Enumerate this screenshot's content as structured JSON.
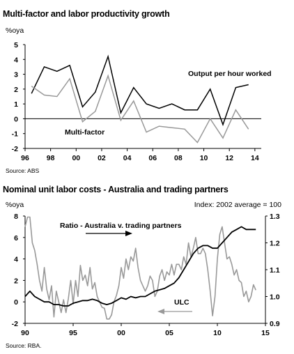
{
  "chart_data": [
    {
      "type": "line",
      "title": "Multi-factor and labor productivity growth",
      "ylabel": "%oya",
      "source": "Source: ABS",
      "xlim": [
        1996,
        2014.5
      ],
      "ylim": [
        -2,
        5
      ],
      "xticks": [
        96,
        98,
        0,
        2,
        4,
        6,
        8,
        10,
        12,
        14
      ],
      "xtick_labels": [
        "96",
        "98",
        "00",
        "02",
        "04",
        "06",
        "08",
        "10",
        "12",
        "14"
      ],
      "yticks": [
        -2,
        -1,
        0,
        1,
        2,
        3,
        4,
        5
      ],
      "ytick_labels": [
        "-2",
        "-1",
        "0",
        "1",
        "2",
        "3",
        "4",
        "5"
      ],
      "series": [
        {
          "name": "Output per hour worked",
          "color": "#000000",
          "x": [
            1996.5,
            1997.5,
            1998.5,
            1999.5,
            2000.5,
            2001.5,
            2002.5,
            2003.5,
            2004.5,
            2005.5,
            2006.5,
            2007.5,
            2008.5,
            2009.5,
            2010.5,
            2011.5,
            2012.5,
            2013.5
          ],
          "values": [
            1.7,
            3.5,
            3.2,
            3.6,
            0.8,
            1.8,
            4.2,
            0.4,
            2.1,
            1.0,
            0.7,
            1.0,
            0.6,
            0.6,
            2.0,
            -0.4,
            2.1,
            2.3
          ]
        },
        {
          "name": "Multi-factor",
          "color": "#999999",
          "x": [
            1996.5,
            1997.5,
            1998.5,
            1999.5,
            2000.5,
            2001.5,
            2002.5,
            2003.5,
            2004.5,
            2005.5,
            2006.5,
            2007.5,
            2008.5,
            2009.5,
            2010.5,
            2011.5,
            2012.5,
            2013.5
          ],
          "values": [
            2.2,
            1.6,
            1.5,
            2.7,
            -0.2,
            0.5,
            2.9,
            -0.1,
            1.2,
            -0.9,
            -0.5,
            -0.6,
            -0.7,
            -1.6,
            0.0,
            -1.3,
            0.6,
            -0.7
          ]
        }
      ]
    },
    {
      "type": "line",
      "title": "Nominal unit labor costs - Australia and trading partners",
      "ylabel": "%oya",
      "index_note": "Index: 2002 average = 100",
      "source": "Source: RBA.",
      "xlim": [
        1990,
        2015
      ],
      "ylim": [
        -2,
        8
      ],
      "y2lim": [
        0.9,
        1.3
      ],
      "xticks": [
        90,
        95,
        0,
        5,
        10,
        15
      ],
      "xtick_labels": [
        "90",
        "95",
        "00",
        "05",
        "10",
        "15"
      ],
      "yticks": [
        -2,
        0,
        2,
        4,
        6,
        8
      ],
      "ytick_labels": [
        "-2",
        "0",
        "2",
        "4",
        "6",
        "8"
      ],
      "y2ticks": [
        0.9,
        1.0,
        1.1,
        1.2,
        1.3
      ],
      "y2tick_labels": [
        "0.9",
        "1.0",
        "1.1",
        "1.2",
        "1.3"
      ],
      "series": [
        {
          "name": "ULC",
          "axis": "left",
          "color": "#999999",
          "x": [
            1990.0,
            1990.25,
            1990.5,
            1990.75,
            1991.0,
            1991.25,
            1991.5,
            1991.75,
            1992.0,
            1992.25,
            1992.5,
            1992.75,
            1993.0,
            1993.25,
            1993.5,
            1993.75,
            1994.0,
            1994.25,
            1994.5,
            1994.75,
            1995.0,
            1995.25,
            1995.5,
            1995.75,
            1996.0,
            1996.25,
            1996.5,
            1996.75,
            1997.0,
            1997.25,
            1997.5,
            1997.75,
            1998.0,
            1998.25,
            1998.5,
            1998.75,
            1999.0,
            1999.25,
            1999.5,
            1999.75,
            2000.0,
            2000.25,
            2000.5,
            2000.75,
            2001.0,
            2001.25,
            2001.5,
            2001.75,
            2002.0,
            2002.25,
            2002.5,
            2002.75,
            2003.0,
            2003.25,
            2003.5,
            2003.75,
            2004.0,
            2004.25,
            2004.5,
            2004.75,
            2005.0,
            2005.25,
            2005.5,
            2005.75,
            2006.0,
            2006.25,
            2006.5,
            2006.75,
            2007.0,
            2007.25,
            2007.5,
            2007.75,
            2008.0,
            2008.25,
            2008.5,
            2008.75,
            2009.0,
            2009.25,
            2009.5,
            2009.75,
            2010.0,
            2010.25,
            2010.5,
            2010.75,
            2011.0,
            2011.25,
            2011.5,
            2011.75,
            2012.0,
            2012.25,
            2012.5,
            2012.75,
            2013.0,
            2013.25,
            2013.5,
            2013.75,
            2014.0
          ],
          "values": [
            7.0,
            7.9,
            7.9,
            5.5,
            4.8,
            3.5,
            2.0,
            1.0,
            3.2,
            1.2,
            0.2,
            1.5,
            -1.4,
            1.0,
            0.0,
            -1.0,
            0.2,
            -1.0,
            0.3,
            2.0,
            -0.2,
            2.0,
            0.5,
            3.4,
            2.0,
            2.5,
            1.5,
            3.2,
            1.2,
            1.8,
            0.5,
            0.0,
            -0.5,
            -0.6,
            -1.6,
            -1.6,
            -1.2,
            0.0,
            0.6,
            1.5,
            3.2,
            2.2,
            4.0,
            3.0,
            4.2,
            3.8,
            5.0,
            3.2,
            2.0,
            1.5,
            1.0,
            1.5,
            2.4,
            2.0,
            0.5,
            1.0,
            2.4,
            3.0,
            2.0,
            2.8,
            2.5,
            3.5,
            2.5,
            3.5,
            3.5,
            3.0,
            4.2,
            3.5,
            5.5,
            4.2,
            5.0,
            6.0,
            4.5,
            4.5,
            5.0,
            4.5,
            3.0,
            1.0,
            -1.3,
            0.5,
            4.0,
            6.3,
            7.0,
            5.5,
            4.0,
            4.2,
            3.5,
            2.5,
            3.0,
            2.0,
            1.8,
            0.5,
            1.0,
            0.0,
            0.5,
            1.6,
            1.1
          ]
        },
        {
          "name": "Ratio - Australia v. trading partners",
          "axis": "right",
          "color": "#000000",
          "x": [
            1990.0,
            1990.5,
            1991.0,
            1991.5,
            1992.0,
            1992.5,
            1993.0,
            1993.5,
            1994.0,
            1994.5,
            1995.0,
            1995.5,
            1996.0,
            1996.5,
            1997.0,
            1997.5,
            1998.0,
            1998.5,
            1999.0,
            1999.5,
            2000.0,
            2000.5,
            2001.0,
            2001.5,
            2002.0,
            2002.5,
            2003.0,
            2003.5,
            2004.0,
            2004.5,
            2005.0,
            2005.5,
            2006.0,
            2006.5,
            2007.0,
            2007.5,
            2008.0,
            2008.5,
            2009.0,
            2009.5,
            2010.0,
            2010.5,
            2011.0,
            2011.5,
            2012.0,
            2012.5,
            2013.0,
            2013.5,
            2014.0
          ],
          "values": [
            1.0,
            1.02,
            1.0,
            0.99,
            0.98,
            0.98,
            0.97,
            0.97,
            0.965,
            0.965,
            0.975,
            0.98,
            0.985,
            0.985,
            0.99,
            0.985,
            0.975,
            0.97,
            0.975,
            0.985,
            0.995,
            0.99,
            1.0,
            0.995,
            1.0,
            1.0,
            1.01,
            1.02,
            1.025,
            1.03,
            1.04,
            1.05,
            1.07,
            1.1,
            1.13,
            1.16,
            1.18,
            1.19,
            1.19,
            1.18,
            1.18,
            1.2,
            1.22,
            1.24,
            1.25,
            1.26,
            1.25,
            1.25,
            1.25
          ]
        }
      ],
      "annotations": [
        {
          "text": "Ratio - Australia v. trading partners",
          "arrow": "right"
        },
        {
          "text": "ULC",
          "arrow": "left"
        }
      ]
    }
  ]
}
